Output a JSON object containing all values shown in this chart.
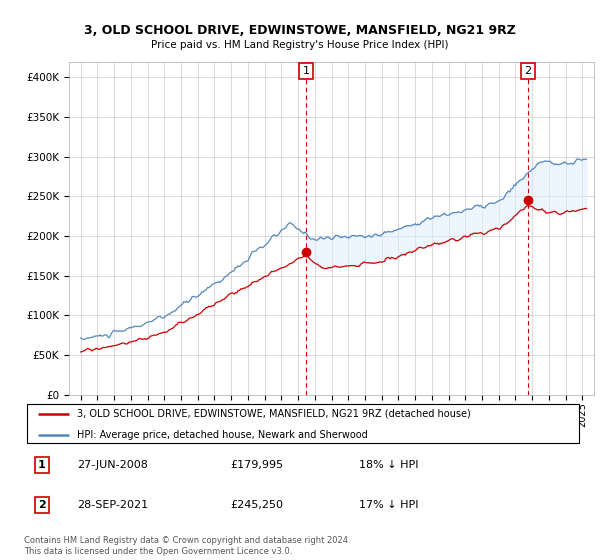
{
  "title": "3, OLD SCHOOL DRIVE, EDWINSTOWE, MANSFIELD, NG21 9RZ",
  "subtitle": "Price paid vs. HM Land Registry's House Price Index (HPI)",
  "ylim": [
    0,
    420000
  ],
  "yticks": [
    0,
    50000,
    100000,
    150000,
    200000,
    250000,
    300000,
    350000,
    400000
  ],
  "ytick_labels": [
    "£0",
    "£50K",
    "£100K",
    "£150K",
    "£200K",
    "£250K",
    "£300K",
    "£350K",
    "£400K"
  ],
  "legend_line1": "3, OLD SCHOOL DRIVE, EDWINSTOWE, MANSFIELD, NG21 9RZ (detached house)",
  "legend_line2": "HPI: Average price, detached house, Newark and Sherwood",
  "annotation1_date": "27-JUN-2008",
  "annotation1_price": "£179,995",
  "annotation1_hpi": "18% ↓ HPI",
  "annotation2_date": "28-SEP-2021",
  "annotation2_price": "£245,250",
  "annotation2_hpi": "17% ↓ HPI",
  "copyright": "Contains HM Land Registry data © Crown copyright and database right 2024.\nThis data is licensed under the Open Government Licence v3.0.",
  "line_color_red": "#cc0000",
  "line_color_blue": "#5588bb",
  "fill_color_blue": "#ddeeff",
  "annotation_vline_color": "#cc0000",
  "grid_color": "#cccccc",
  "background_color": "#ffffff"
}
